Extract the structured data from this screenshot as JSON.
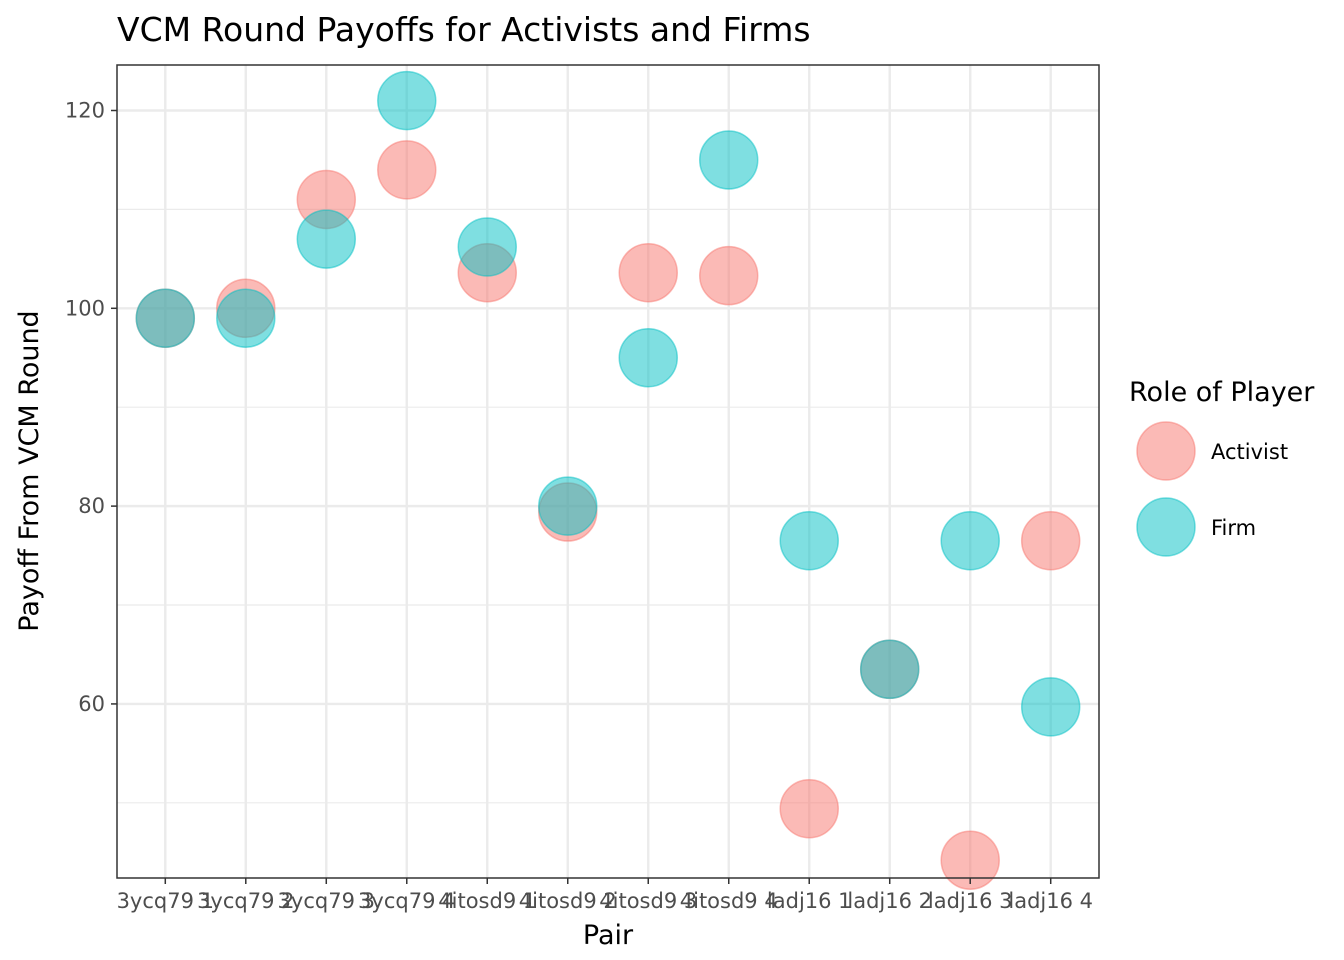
{
  "chart_data": {
    "type": "scatter",
    "title": "VCM Round Payoffs for Activists and Firms",
    "xlabel": "Pair",
    "ylabel": "Payoff From VCM Round",
    "categories": [
      "3ycq79 1",
      "3ycq79 2",
      "3ycq79 3",
      "3ycq79 4",
      "4itosd9 1",
      "4itosd9 2",
      "4itosd9 3",
      "4itosd9 4",
      "ladj16 1",
      "ladj16 2",
      "ladj16 3",
      "ladj16 4"
    ],
    "yticks": [
      60,
      80,
      100,
      120
    ],
    "ylim": [
      42.4,
      124.6
    ],
    "grid": true,
    "legend": {
      "title": "Role of Player",
      "placement": "right"
    },
    "series": [
      {
        "name": "Activist",
        "color": "#F8766D",
        "values": [
          99,
          100,
          111,
          114,
          103.6,
          79.4,
          103.6,
          103.3,
          49.4,
          63.5,
          44.2,
          76.5
        ]
      },
      {
        "name": "Firm",
        "color": "#00BFC4",
        "values": [
          99,
          99,
          107,
          121,
          106.2,
          80,
          95,
          115,
          76.5,
          63.5,
          76.5,
          59.7
        ]
      }
    ]
  }
}
